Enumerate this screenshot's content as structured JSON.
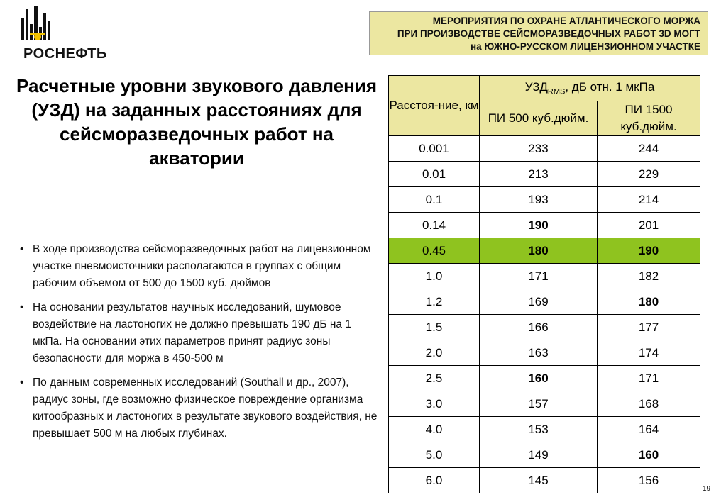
{
  "header": {
    "line1": "МЕРОПРИЯТИЯ ПО ОХРАНЕ АТЛАНТИЧЕСКОГО МОРЖА",
    "line2": "ПРИ ПРОИЗВОДСТВЕ СЕЙСМОРАЗВЕДОЧНЫХ РАБОТ 3D МОГТ",
    "line3": "на ЮЖНО-РУССКОМ ЛИЦЕНЗИОННОМ УЧАСТКЕ"
  },
  "logo": {
    "text": "РОСНЕФТЬ",
    "icon": "rosneft-logo-icon",
    "color": "#111111"
  },
  "title": "Расчетные уровни звукового давления (УЗД) на заданных расстояниях для сейсморазведочных работ на акватории",
  "bullets": [
    "В ходе производства сейсморазведочных работ на лицензионном участке пневмоисточники располагаются в группах  с общим рабочим объемом от 500 до 1500 куб. дюймов",
    "На основании результатов научных исследований, шумовое воздействие на ластоногих не должно превышать 190 дБ на 1 мкПа. На основании этих параметров принят радиус зоны безопасности для моржа в 450-500 м",
    "По данным современных исследований (Southall и др., 2007), радиус зоны, где возможно физическое повреждение организма китообразных и ластоногих в результате звукового воздействия, не превышает 500 м на любых глубинах."
  ],
  "table": {
    "col_distance": "Расстоя-ние, км",
    "uzd_prefix": "УЗД",
    "uzd_sub": "RMS",
    "uzd_suffix": ", дБ отн. 1 мкПа",
    "col_pi500": "ПИ 500 куб.дюйм.",
    "col_pi1500": "ПИ 1500 куб.дюйм.",
    "rows": [
      {
        "d": "0.001",
        "a": "233",
        "b": "244",
        "a_bold": false,
        "b_bold": false,
        "green": false
      },
      {
        "d": "0.01",
        "a": "213",
        "b": "229",
        "a_bold": false,
        "b_bold": false,
        "green": false
      },
      {
        "d": "0.1",
        "a": "193",
        "b": "214",
        "a_bold": false,
        "b_bold": false,
        "green": false
      },
      {
        "d": "0.14",
        "a": "190",
        "b": "201",
        "a_bold": true,
        "b_bold": false,
        "green": false
      },
      {
        "d": "0.45",
        "a": "180",
        "b": "190",
        "a_bold": true,
        "b_bold": true,
        "green": true
      },
      {
        "d": "1.0",
        "a": "171",
        "b": "182",
        "a_bold": false,
        "b_bold": false,
        "green": false
      },
      {
        "d": "1.2",
        "a": "169",
        "b": "180",
        "a_bold": false,
        "b_bold": true,
        "green": false
      },
      {
        "d": "1.5",
        "a": "166",
        "b": "177",
        "a_bold": false,
        "b_bold": false,
        "green": false
      },
      {
        "d": "2.0",
        "a": "163",
        "b": "174",
        "a_bold": false,
        "b_bold": false,
        "green": false
      },
      {
        "d": "2.5",
        "a": "160",
        "b": "171",
        "a_bold": true,
        "b_bold": false,
        "green": false
      },
      {
        "d": "3.0",
        "a": "157",
        "b": "168",
        "a_bold": false,
        "b_bold": false,
        "green": false
      },
      {
        "d": "4.0",
        "a": "153",
        "b": "164",
        "a_bold": false,
        "b_bold": false,
        "green": false
      },
      {
        "d": "5.0",
        "a": "149",
        "b": "160",
        "a_bold": false,
        "b_bold": true,
        "green": false
      },
      {
        "d": "6.0",
        "a": "145",
        "b": "156",
        "a_bold": false,
        "b_bold": false,
        "green": false
      }
    ]
  },
  "page_number": "19",
  "colors": {
    "header_bg": "#ece7a1",
    "highlight": "#8fc31f"
  }
}
